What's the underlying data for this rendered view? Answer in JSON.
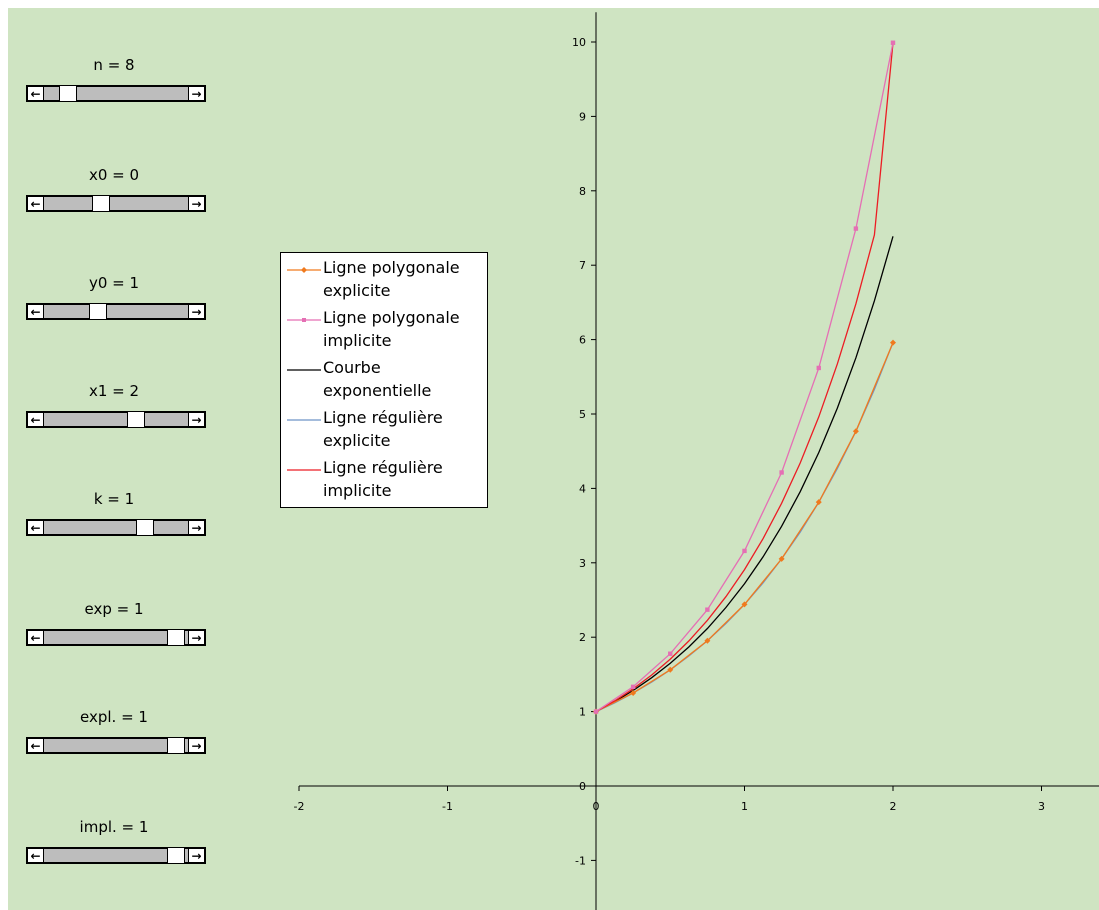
{
  "controls": [
    {
      "label": "n = 8",
      "value": 8,
      "position": 0.12
    },
    {
      "label": "x0 = 0",
      "value": 0,
      "position": 0.38
    },
    {
      "label": "y0 = 1",
      "value": 1,
      "position": 0.36
    },
    {
      "label": "x1 = 2",
      "value": 2,
      "position": 0.66
    },
    {
      "label": "k = 1",
      "value": 1,
      "position": 0.73
    },
    {
      "label": "exp = 1",
      "value": 1,
      "position": 0.98
    },
    {
      "label": "expl. = 1",
      "value": 1,
      "position": 0.98
    },
    {
      "label": "impl. = 1",
      "value": 1,
      "position": 0.98
    }
  ],
  "icons": {
    "left_arrow": "arrow-left-icon",
    "right_arrow": "arrow-right-icon"
  },
  "chart_data": {
    "type": "line",
    "title": "",
    "xlabel": "",
    "ylabel": "",
    "xlim": [
      -2,
      3.35
    ],
    "ylim": [
      -1.7,
      10.4
    ],
    "x_ticks": [
      -2,
      -1,
      0,
      1,
      2,
      3
    ],
    "y_ticks": [
      -1,
      0,
      1,
      2,
      3,
      4,
      5,
      6,
      7,
      8,
      9,
      10
    ],
    "x_tick_labels": [
      "-2",
      "-1",
      "0",
      "1",
      "2",
      "3"
    ],
    "y_tick_labels": [
      "-1",
      "0",
      "1",
      "2",
      "3",
      "4",
      "5",
      "6",
      "7",
      "8",
      "9",
      "10"
    ],
    "grid": false,
    "legend_position": "left-middle",
    "background": "#cfe4c2",
    "series": [
      {
        "name": "Ligne polygonale explicite",
        "color": "#f07a1e",
        "marker": "diamond",
        "x": [
          0,
          0.25,
          0.5,
          0.75,
          1,
          1.25,
          1.5,
          1.75,
          2
        ],
        "y": [
          1,
          1.25,
          1.5625,
          1.953,
          2.441,
          3.052,
          3.815,
          4.768,
          5.96
        ]
      },
      {
        "name": "Ligne polygonale implicite",
        "color": "#e56fb4",
        "marker": "square",
        "x": [
          0,
          0.25,
          0.5,
          0.75,
          1,
          1.25,
          1.5,
          1.75,
          2
        ],
        "y": [
          1,
          1.333,
          1.778,
          2.37,
          3.16,
          4.214,
          5.619,
          7.492,
          9.99
        ]
      },
      {
        "name": "Courbe exponentielle",
        "color": "#000000",
        "marker": "none",
        "x": [
          0,
          0.125,
          0.25,
          0.375,
          0.5,
          0.625,
          0.75,
          0.875,
          1,
          1.125,
          1.25,
          1.375,
          1.5,
          1.625,
          1.75,
          1.875,
          2
        ],
        "y": [
          1,
          1.133,
          1.284,
          1.455,
          1.649,
          1.868,
          2.117,
          2.399,
          2.718,
          3.08,
          3.49,
          3.955,
          4.482,
          5.078,
          5.755,
          6.521,
          7.389
        ]
      },
      {
        "name": "Ligne régulière explicite",
        "color": "#6e95c8",
        "marker": "none",
        "x": [
          0,
          0.125,
          0.25,
          0.375,
          0.5,
          0.625,
          0.75,
          0.875,
          1,
          1.125,
          1.25,
          1.375,
          1.5,
          1.625,
          1.75,
          1.875,
          2
        ],
        "y": [
          1,
          1.117,
          1.25,
          1.397,
          1.5625,
          1.747,
          1.953,
          2.184,
          2.441,
          2.73,
          3.052,
          3.412,
          3.815,
          4.266,
          4.768,
          5.331,
          5.96
        ]
      },
      {
        "name": "Ligne régulière implicite",
        "color": "#ec1c24",
        "marker": "none",
        "x": [
          0,
          0.125,
          0.25,
          0.375,
          0.5,
          0.625,
          0.75,
          0.875,
          1,
          1.125,
          1.25,
          1.375,
          1.5,
          1.625,
          1.75,
          1.875,
          2
        ],
        "y": [
          1,
          1.143,
          1.306,
          1.492,
          1.705,
          1.949,
          2.227,
          2.545,
          2.909,
          3.325,
          3.8,
          4.342,
          4.962,
          5.671,
          6.481,
          7.407,
          9.99
        ]
      }
    ]
  },
  "legend": {
    "entries": [
      {
        "line1": "Ligne polygonale",
        "line2": "explicite",
        "color": "#f07a1e",
        "marker": "diamond"
      },
      {
        "line1": "Ligne polygonale",
        "line2": "implicite",
        "color": "#e56fb4",
        "marker": "square"
      },
      {
        "line1": "Courbe",
        "line2": "exponentielle",
        "color": "#000000",
        "marker": "none"
      },
      {
        "line1": "Ligne régulière",
        "line2": "explicite",
        "color": "#6e95c8",
        "marker": "none"
      },
      {
        "line1": "Ligne régulière",
        "line2": "implicite",
        "color": "#ec1c24",
        "marker": "none"
      }
    ]
  }
}
